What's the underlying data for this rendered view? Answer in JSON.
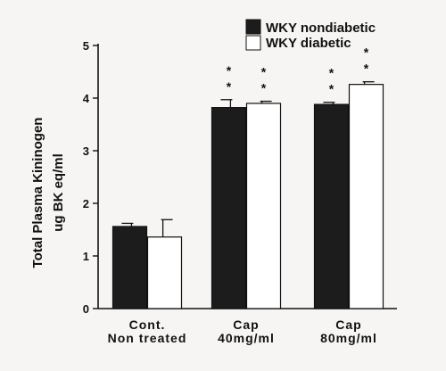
{
  "chart_data": {
    "type": "bar",
    "ylabel": [
      "Total  Plasma   Kininogen",
      "ug BK eq/ml"
    ],
    "ylim": [
      0,
      5
    ],
    "yticks": [
      0,
      1,
      2,
      3,
      4,
      5
    ],
    "categories": [
      [
        "Cont.",
        "Non   treated"
      ],
      [
        "Cap",
        "40mg/ml"
      ],
      [
        "Cap",
        "80mg/ml"
      ]
    ],
    "legend_position": "top-right",
    "series": [
      {
        "name": "WKY nondiabetic",
        "color": "#1c1c1c",
        "values": [
          1.56,
          3.82,
          3.88
        ],
        "errors": [
          0.06,
          0.15,
          0.04
        ],
        "significance": [
          "",
          "* *",
          "* *"
        ]
      },
      {
        "name": "WKY diabetic",
        "color": "#ffffff",
        "values": [
          1.36,
          3.9,
          4.26
        ],
        "errors": [
          0.33,
          0.04,
          0.05
        ],
        "significance": [
          "",
          "* *",
          "* *"
        ]
      }
    ]
  }
}
